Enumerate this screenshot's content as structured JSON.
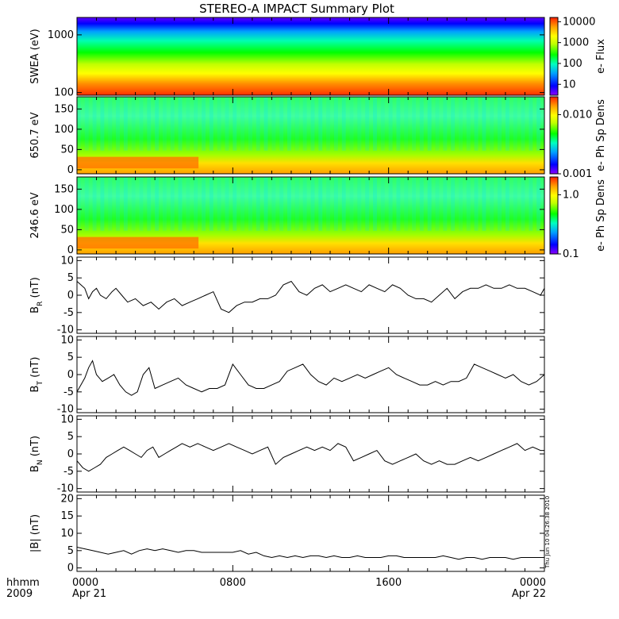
{
  "title": "STEREO-A IMPACT Summary Plot",
  "timestamp": "Thu Jun 10 04:26:38 2010",
  "x_axis": {
    "left_label_top": "hhmm",
    "left_label_bottom": "2009",
    "ticks": [
      {
        "pos": 0,
        "label": "0000",
        "sublabel": "Apr 21"
      },
      {
        "pos": 8,
        "label": "0800",
        "sublabel": ""
      },
      {
        "pos": 16,
        "label": "1600",
        "sublabel": ""
      },
      {
        "pos": 24,
        "label": "0000",
        "sublabel": "Apr 22"
      }
    ]
  },
  "chart_data": [
    {
      "type": "heatmap",
      "id": "swea",
      "ylabel": "SWEA (eV)",
      "yscale": "log",
      "ylim": [
        90,
        2000
      ],
      "yticks": [
        100,
        1000
      ],
      "ytick_labels": [
        "100",
        "1000"
      ],
      "colorbar_label": "e- Flux",
      "colorbar_ticks": [
        "10",
        "100",
        "1000",
        "10000"
      ],
      "colorbar_values": [
        10,
        100,
        1000,
        10000
      ],
      "colorbar_scale": "log",
      "colorbar_range": [
        3,
        16000
      ],
      "colors": [
        "#8a00ff",
        "#0000ff",
        "#00a0ff",
        "#00ffc0",
        "#00ff00",
        "#c0ff00",
        "#ffff00",
        "#ffa000",
        "#ff3000"
      ]
    },
    {
      "type": "heatmap",
      "id": "pad650",
      "ylabel": "650.7 eV",
      "ylim": [
        -10,
        180
      ],
      "yticks": [
        0,
        50,
        100,
        150
      ],
      "colorbar_label": "e- Ph Sp Dens",
      "colorbar_ticks": [
        "0.001",
        "0.010"
      ],
      "colorbar_values": [
        0.001,
        0.01
      ],
      "colorbar_scale": "log",
      "colorbar_range": [
        0.001,
        0.02
      ]
    },
    {
      "type": "heatmap",
      "id": "pad246",
      "ylabel": "246.6 eV",
      "ylim": [
        -10,
        180
      ],
      "yticks": [
        0,
        50,
        100,
        150
      ],
      "colorbar_label": "e- Ph Sp Dens",
      "colorbar_ticks": [
        "0.1",
        "1.0"
      ],
      "colorbar_values": [
        0.1,
        1.0
      ],
      "colorbar_scale": "log",
      "colorbar_range": [
        0.1,
        2.0
      ]
    },
    {
      "type": "line",
      "id": "br",
      "ylabel_main": "B",
      "ylabel_sub": "R",
      "ylabel_unit": " (nT)",
      "ylim": [
        -11,
        11
      ],
      "yticks": [
        -10,
        -5,
        0,
        5,
        10
      ],
      "x": [
        0,
        0.2,
        0.4,
        0.6,
        0.8,
        1.0,
        1.2,
        1.5,
        1.8,
        2.0,
        2.3,
        2.6,
        3.0,
        3.4,
        3.8,
        4.2,
        4.6,
        5.0,
        5.4,
        5.8,
        6.2,
        6.6,
        7.0,
        7.4,
        7.8,
        8.2,
        8.6,
        9.0,
        9.4,
        9.8,
        10.2,
        10.6,
        11.0,
        11.4,
        11.8,
        12.2,
        12.6,
        13.0,
        13.4,
        13.8,
        14.2,
        14.6,
        15.0,
        15.4,
        15.8,
        16.2,
        16.6,
        17.0,
        17.4,
        17.8,
        18.2,
        18.6,
        19.0,
        19.4,
        19.8,
        20.2,
        20.6,
        21.0,
        21.4,
        21.8,
        22.2,
        22.6,
        23.0,
        23.4,
        23.8,
        24.0
      ],
      "y": [
        4,
        3,
        2,
        -1,
        1,
        2,
        0,
        -1,
        1,
        2,
        0,
        -2,
        -1,
        -3,
        -2,
        -4,
        -2,
        -1,
        -3,
        -2,
        -1,
        0,
        1,
        -4,
        -5,
        -3,
        -2,
        -2,
        -1,
        -1,
        0,
        3,
        4,
        1,
        0,
        2,
        3,
        1,
        2,
        3,
        2,
        1,
        3,
        2,
        1,
        3,
        2,
        0,
        -1,
        -1,
        -2,
        0,
        2,
        -1,
        1,
        2,
        2,
        3,
        2,
        2,
        3,
        2,
        2,
        1,
        0,
        2
      ],
      "color": "#000000"
    },
    {
      "type": "line",
      "id": "bt",
      "ylabel_main": "B",
      "ylabel_sub": "T",
      "ylabel_unit": " (nT)",
      "ylim": [
        -11,
        11
      ],
      "yticks": [
        -10,
        -5,
        0,
        5,
        10
      ],
      "x": [
        0,
        0.2,
        0.4,
        0.6,
        0.8,
        1.0,
        1.3,
        1.6,
        1.9,
        2.2,
        2.5,
        2.8,
        3.1,
        3.4,
        3.7,
        4.0,
        4.4,
        4.8,
        5.2,
        5.6,
        6.0,
        6.4,
        6.8,
        7.2,
        7.6,
        8.0,
        8.4,
        8.8,
        9.2,
        9.6,
        10.0,
        10.4,
        10.8,
        11.2,
        11.6,
        12.0,
        12.4,
        12.8,
        13.2,
        13.6,
        14.0,
        14.4,
        14.8,
        15.2,
        15.6,
        16.0,
        16.4,
        16.8,
        17.2,
        17.6,
        18.0,
        18.4,
        18.8,
        19.2,
        19.6,
        20.0,
        20.4,
        20.8,
        21.2,
        21.6,
        22.0,
        22.4,
        22.8,
        23.2,
        23.6,
        24.0
      ],
      "y": [
        -5,
        -3,
        -1,
        2,
        4,
        0,
        -2,
        -1,
        0,
        -3,
        -5,
        -6,
        -5,
        0,
        2,
        -4,
        -3,
        -2,
        -1,
        -3,
        -4,
        -5,
        -4,
        -4,
        -3,
        3,
        0,
        -3,
        -4,
        -4,
        -3,
        -2,
        1,
        2,
        3,
        0,
        -2,
        -3,
        -1,
        -2,
        -1,
        0,
        -1,
        0,
        1,
        2,
        0,
        -1,
        -2,
        -3,
        -3,
        -2,
        -3,
        -2,
        -2,
        -1,
        3,
        2,
        1,
        0,
        -1,
        0,
        -2,
        -3,
        -2,
        0
      ],
      "color": "#000000"
    },
    {
      "type": "line",
      "id": "bn",
      "ylabel_main": "B",
      "ylabel_sub": "N",
      "ylabel_unit": " (nT)",
      "ylim": [
        -11,
        11
      ],
      "yticks": [
        -10,
        -5,
        0,
        5,
        10
      ],
      "x": [
        0,
        0.3,
        0.6,
        0.9,
        1.2,
        1.5,
        1.8,
        2.1,
        2.4,
        2.7,
        3.0,
        3.3,
        3.6,
        3.9,
        4.2,
        4.5,
        4.8,
        5.1,
        5.4,
        5.8,
        6.2,
        6.6,
        7.0,
        7.4,
        7.8,
        8.2,
        8.6,
        9.0,
        9.4,
        9.8,
        10.2,
        10.6,
        11.0,
        11.4,
        11.8,
        12.2,
        12.6,
        13.0,
        13.4,
        13.8,
        14.2,
        14.6,
        15.0,
        15.4,
        15.8,
        16.2,
        16.6,
        17.0,
        17.4,
        17.8,
        18.2,
        18.6,
        19.0,
        19.4,
        19.8,
        20.2,
        20.6,
        21.0,
        21.4,
        21.8,
        22.2,
        22.6,
        23.0,
        23.4,
        23.8,
        24.0
      ],
      "y": [
        -2,
        -4,
        -5,
        -4,
        -3,
        -1,
        0,
        1,
        2,
        1,
        0,
        -1,
        1,
        2,
        -1,
        0,
        1,
        2,
        3,
        2,
        3,
        2,
        1,
        2,
        3,
        2,
        1,
        0,
        1,
        2,
        -3,
        -1,
        0,
        1,
        2,
        1,
        2,
        1,
        3,
        2,
        -2,
        -1,
        0,
        1,
        -2,
        -3,
        -2,
        -1,
        0,
        -2,
        -3,
        -2,
        -3,
        -3,
        -2,
        -1,
        -2,
        -1,
        0,
        1,
        2,
        3,
        1,
        2,
        1,
        1
      ],
      "color": "#000000"
    },
    {
      "type": "line",
      "id": "bmag",
      "ylabel": "|B| (nT)",
      "ylim": [
        -1,
        21
      ],
      "yticks": [
        0,
        5,
        10,
        15,
        20
      ],
      "x": [
        0,
        0.4,
        0.8,
        1.2,
        1.6,
        2.0,
        2.4,
        2.8,
        3.2,
        3.6,
        4.0,
        4.4,
        4.8,
        5.2,
        5.6,
        6.0,
        6.4,
        6.8,
        7.2,
        7.6,
        8.0,
        8.4,
        8.8,
        9.2,
        9.6,
        10.0,
        10.4,
        10.8,
        11.2,
        11.6,
        12.0,
        12.4,
        12.8,
        13.2,
        13.6,
        14.0,
        14.4,
        14.8,
        15.2,
        15.6,
        16.0,
        16.4,
        16.8,
        17.2,
        17.6,
        18.0,
        18.4,
        18.8,
        19.2,
        19.6,
        20.0,
        20.4,
        20.8,
        21.2,
        21.6,
        22.0,
        22.4,
        22.8,
        23.2,
        23.6,
        24.0
      ],
      "y": [
        6,
        5.5,
        5,
        4.5,
        4,
        4.5,
        5,
        4,
        5,
        5.5,
        5,
        5.5,
        5,
        4.5,
        5,
        5,
        4.5,
        4.5,
        4.5,
        4.5,
        4.5,
        5,
        4,
        4.5,
        3.5,
        3,
        3.5,
        3,
        3.5,
        3,
        3.5,
        3.5,
        3,
        3.5,
        3,
        3,
        3.5,
        3,
        3,
        3,
        3.5,
        3.5,
        3,
        3,
        3,
        3,
        3,
        3.5,
        3,
        2.5,
        3,
        3,
        2.5,
        3,
        3,
        3,
        2.5,
        3,
        3,
        3,
        3
      ],
      "color": "#000000"
    }
  ]
}
